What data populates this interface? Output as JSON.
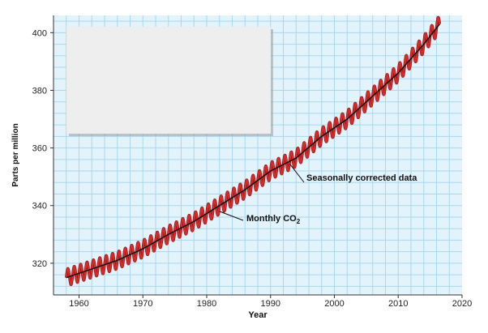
{
  "chart_data": {
    "type": "line",
    "xlabel": "Year",
    "ylabel": "Parts per million",
    "xlim": [
      1956,
      2020
    ],
    "ylim": [
      309,
      406
    ],
    "x_ticks": [
      1960,
      1970,
      1980,
      1990,
      2000,
      2010,
      2020
    ],
    "y_ticks": [
      320,
      340,
      360,
      380,
      400
    ],
    "grid": true,
    "colors": {
      "plot_background": "#e3f3fb",
      "grid": "#a9d7ec",
      "monthly": "#d62b2b",
      "monthly_edge": "#8c1111",
      "trend": "#111111",
      "legend_box": "#eeeeee"
    },
    "series": [
      {
        "name": "Monthly CO2",
        "style": "seasonal oscillation",
        "seasonal_amplitude_ppm": 3,
        "x": [
          1958,
          1962,
          1966,
          1970,
          1974,
          1978,
          1982,
          1986,
          1990,
          1994,
          1998,
          2002,
          2006,
          2010,
          2014,
          2016.5
        ],
        "y": [
          315,
          318,
          321,
          325,
          330,
          334.5,
          340,
          345.5,
          352,
          356.5,
          364,
          370,
          378,
          386,
          396,
          403
        ]
      },
      {
        "name": "Seasonally corrected data",
        "style": "trend",
        "x": [
          1958,
          1962,
          1966,
          1970,
          1974,
          1978,
          1982,
          1986,
          1990,
          1994,
          1998,
          2002,
          2006,
          2010,
          2014,
          2016.5
        ],
        "y": [
          315,
          318,
          321,
          325,
          330,
          334.5,
          340,
          345.5,
          352,
          356.5,
          364,
          370,
          378,
          386,
          396,
          403
        ]
      }
    ],
    "annotations": [
      {
        "text": "Seasonally corrected data",
        "points_to": {
          "x": 1993,
          "y": 354.5
        }
      },
      {
        "text": "Monthly CO",
        "subscript": "2",
        "points_to": {
          "x": 1982,
          "y": 338
        }
      }
    ],
    "legend_box": "blank rectangle at top-left"
  }
}
